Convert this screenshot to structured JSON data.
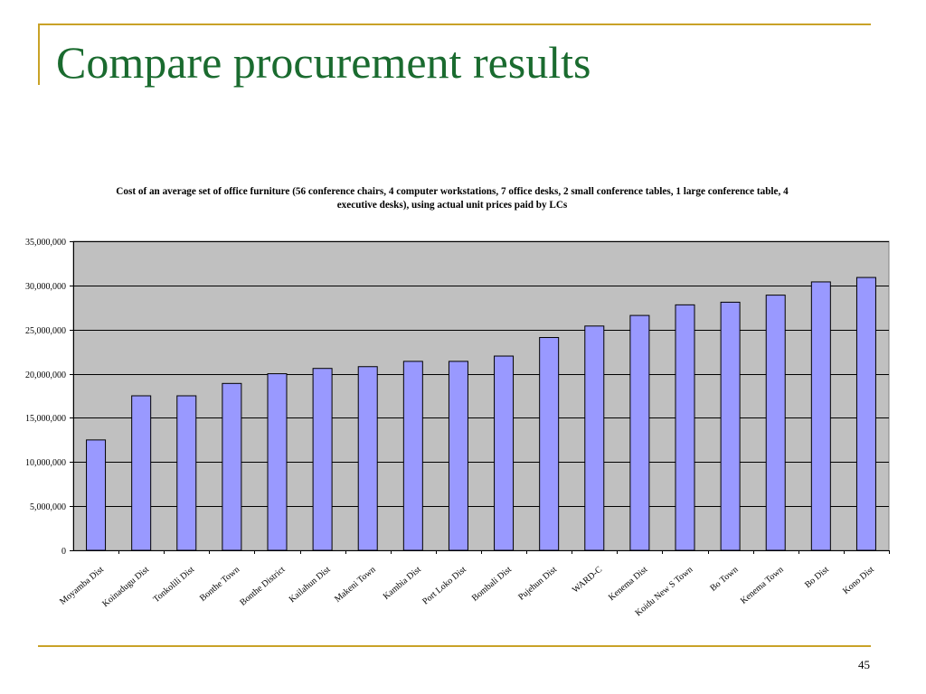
{
  "slide": {
    "title": "Compare procurement results",
    "page_number": "45"
  },
  "colors": {
    "frame": "#c9a227",
    "title": "#1a6b2f",
    "plot_bg": "#c0c0c0",
    "bar": "#9999ff"
  },
  "chart_data": {
    "type": "bar",
    "title": "Cost of an average set of office furniture (56 conference chairs, 4 computer workstations, 7 office desks, 2 small conference tables, 1 large conference table, 4 executive desks), using actual unit prices paid by LCs",
    "xlabel": "",
    "ylabel": "",
    "ylim": [
      0,
      35000000
    ],
    "y_ticks": [
      0,
      5000000,
      10000000,
      15000000,
      20000000,
      25000000,
      30000000,
      35000000
    ],
    "y_tick_labels": [
      "0",
      "5,000,000",
      "10,000,000",
      "15,000,000",
      "20,000,000",
      "25,000,000",
      "30,000,000",
      "35,000,000"
    ],
    "grid": true,
    "legend": "none",
    "categories": [
      "Moyamba Dist",
      "Koinadugu Dist",
      "Tonkolili Dist",
      "Bonthe Town",
      "Bonthe District",
      "Kailahun Dist",
      "Makeni Town",
      "Kambia Dist",
      "Port Loko Dist",
      "Bombali Dist",
      "Pujehun Dist",
      "WARD-C",
      "Kenema Dist",
      "Koidu New S Town",
      "Bo Town",
      "Kenema Town",
      "Bo Dist",
      "Kono Dist"
    ],
    "values": [
      12500000,
      17500000,
      17500000,
      18900000,
      20000000,
      20600000,
      20800000,
      21400000,
      21400000,
      22000000,
      24100000,
      25400000,
      26600000,
      27800000,
      28100000,
      28900000,
      30400000,
      30900000
    ]
  }
}
